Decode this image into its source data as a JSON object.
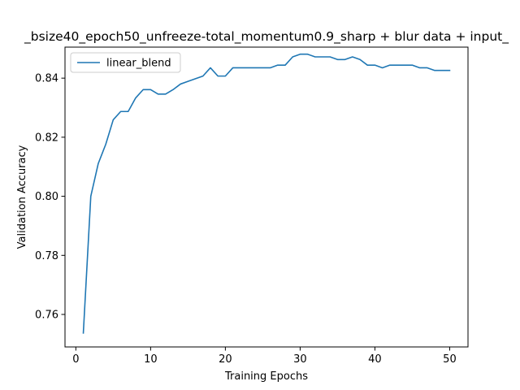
{
  "chart_data": {
    "type": "line",
    "title": "_bsize40_epoch50_unfreeze-total_momentum0.9_sharp + blur data + input_",
    "xlabel": "Training Epochs",
    "ylabel": "Validation Accuracy",
    "xlim": [
      -1.45,
      52.45
    ],
    "ylim": [
      0.749,
      0.8505
    ],
    "xticks": [
      0,
      10,
      20,
      30,
      40,
      50
    ],
    "yticks": [
      0.76,
      0.78,
      0.8,
      0.82,
      0.84
    ],
    "xtick_labels": [
      "0",
      "10",
      "20",
      "30",
      "40",
      "50"
    ],
    "ytick_labels": [
      "0.76",
      "0.78",
      "0.80",
      "0.82",
      "0.84"
    ],
    "grid": false,
    "legend": {
      "location": "upper-left"
    },
    "series": [
      {
        "name": "linear_blend",
        "color": "#1f77b4",
        "x": [
          1,
          2,
          3,
          4,
          5,
          6,
          7,
          8,
          9,
          10,
          11,
          12,
          13,
          14,
          15,
          16,
          17,
          18,
          19,
          20,
          21,
          22,
          23,
          24,
          25,
          26,
          27,
          28,
          29,
          30,
          31,
          32,
          33,
          34,
          35,
          36,
          37,
          38,
          39,
          40,
          41,
          42,
          43,
          44,
          45,
          46,
          47,
          48,
          49,
          50
        ],
        "y": [
          0.7537,
          0.8,
          0.8111,
          0.8176,
          0.8259,
          0.8287,
          0.8287,
          0.8333,
          0.8361,
          0.8361,
          0.8346,
          0.8346,
          0.8361,
          0.838,
          0.8389,
          0.8398,
          0.8407,
          0.8435,
          0.8407,
          0.8407,
          0.8435,
          0.8435,
          0.8435,
          0.8435,
          0.8435,
          0.8435,
          0.8444,
          0.8444,
          0.8472,
          0.8481,
          0.8481,
          0.8472,
          0.8472,
          0.8472,
          0.8463,
          0.8463,
          0.8472,
          0.8463,
          0.8444,
          0.8444,
          0.8435,
          0.8444,
          0.8444,
          0.8444,
          0.8444,
          0.8435,
          0.8435,
          0.8426,
          0.8426,
          0.8426
        ]
      }
    ]
  }
}
